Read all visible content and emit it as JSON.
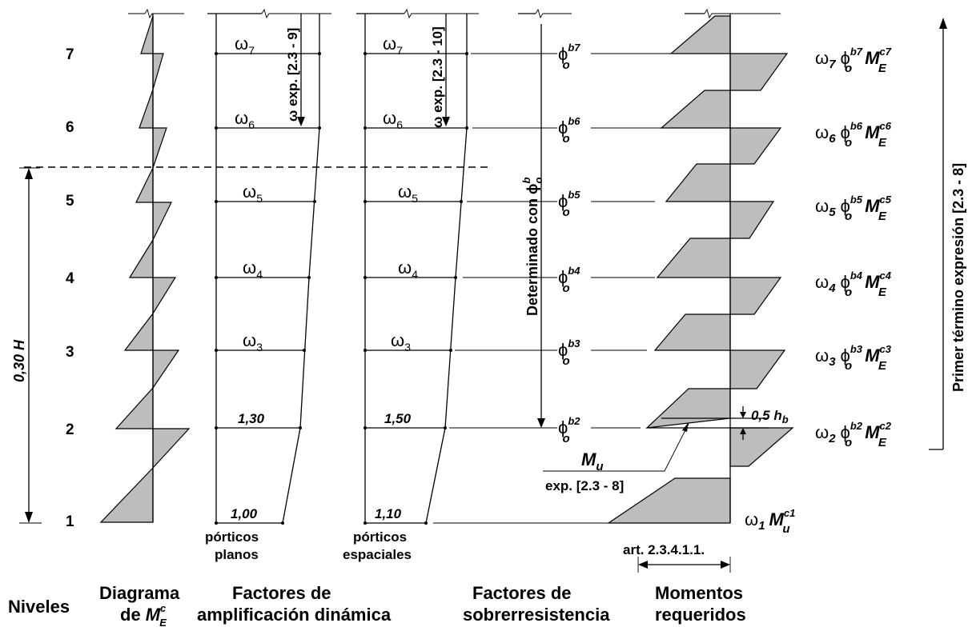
{
  "levels": [
    "1",
    "2",
    "3",
    "4",
    "5",
    "6",
    "7"
  ],
  "height_label": "0,30 H",
  "planos": {
    "omegas": [
      "ω",
      "ω",
      "ω",
      "ω",
      "ω",
      "ω"
    ],
    "omega_subs": [
      "3",
      "4",
      "5",
      "6",
      "7"
    ],
    "omega_sub_2": "",
    "val_top": "1,30",
    "val_base": "1,00",
    "exp_label": "ω exp. [2.3 - 9]",
    "caption_1": "pórticos",
    "caption_2": "planos"
  },
  "espaciales": {
    "omega_subs": [
      "3",
      "4",
      "5",
      "6",
      "7"
    ],
    "val_top": "1,50",
    "val_base": "1,10",
    "exp_label": "ω exp. [2.3 - 10]",
    "caption_1": "pórticos",
    "caption_2": "espaciales"
  },
  "phi_column": {
    "symbol": "ϕ",
    "sub": "o",
    "sups": [
      "b2",
      "b3",
      "b4",
      "b5",
      "b6",
      "b7"
    ],
    "vertical_label": "Determinado con ϕ",
    "vertical_sup": "b",
    "vertical_sub": "o"
  },
  "moments": {
    "hb_label": "0,5 h",
    "hb_sub": "b",
    "mu_label": "M",
    "mu_sub": "u",
    "mu_exp": "exp. [2.3 - 8]",
    "base_omega": "ω",
    "base_omega_sub": "1",
    "base_m": "M",
    "base_m_sup": "c1",
    "base_m_sub": "u",
    "art_label": "art. 2.3.4.1.1."
  },
  "required": {
    "rows": [
      {
        "w": "ω",
        "wsub": "2",
        "psup": "b2",
        "msup": "c2"
      },
      {
        "w": "ω",
        "wsub": "3",
        "psup": "b3",
        "msup": "c3"
      },
      {
        "w": "ω",
        "wsub": "4",
        "psup": "b4",
        "msup": "c4"
      },
      {
        "w": "ω",
        "wsub": "5",
        "psup": "b5",
        "msup": "c5"
      },
      {
        "w": "ω",
        "wsub": "6",
        "psup": "b6",
        "msup": "c6"
      },
      {
        "w": "ω",
        "wsub": "7",
        "psup": "b7",
        "msup": "c7"
      }
    ],
    "phi": "ϕ",
    "phi_sub": "o",
    "m": "M",
    "m_sub": "E",
    "side_label": "Primer término expresión [2.3 - 8]"
  },
  "captions": {
    "niveles": "Niveles",
    "diagrama_1": "Diagrama",
    "diagrama_2": "de",
    "diagrama_m": "M",
    "diagrama_sup": "c",
    "diagrama_sub": "E",
    "amp_1": "Factores de",
    "amp_2": "amplificación dinámica",
    "sob_1": "Factores de",
    "sob_2": "sobrerresistencia",
    "mom_1": "Momentos",
    "mom_2": "requeridos"
  }
}
